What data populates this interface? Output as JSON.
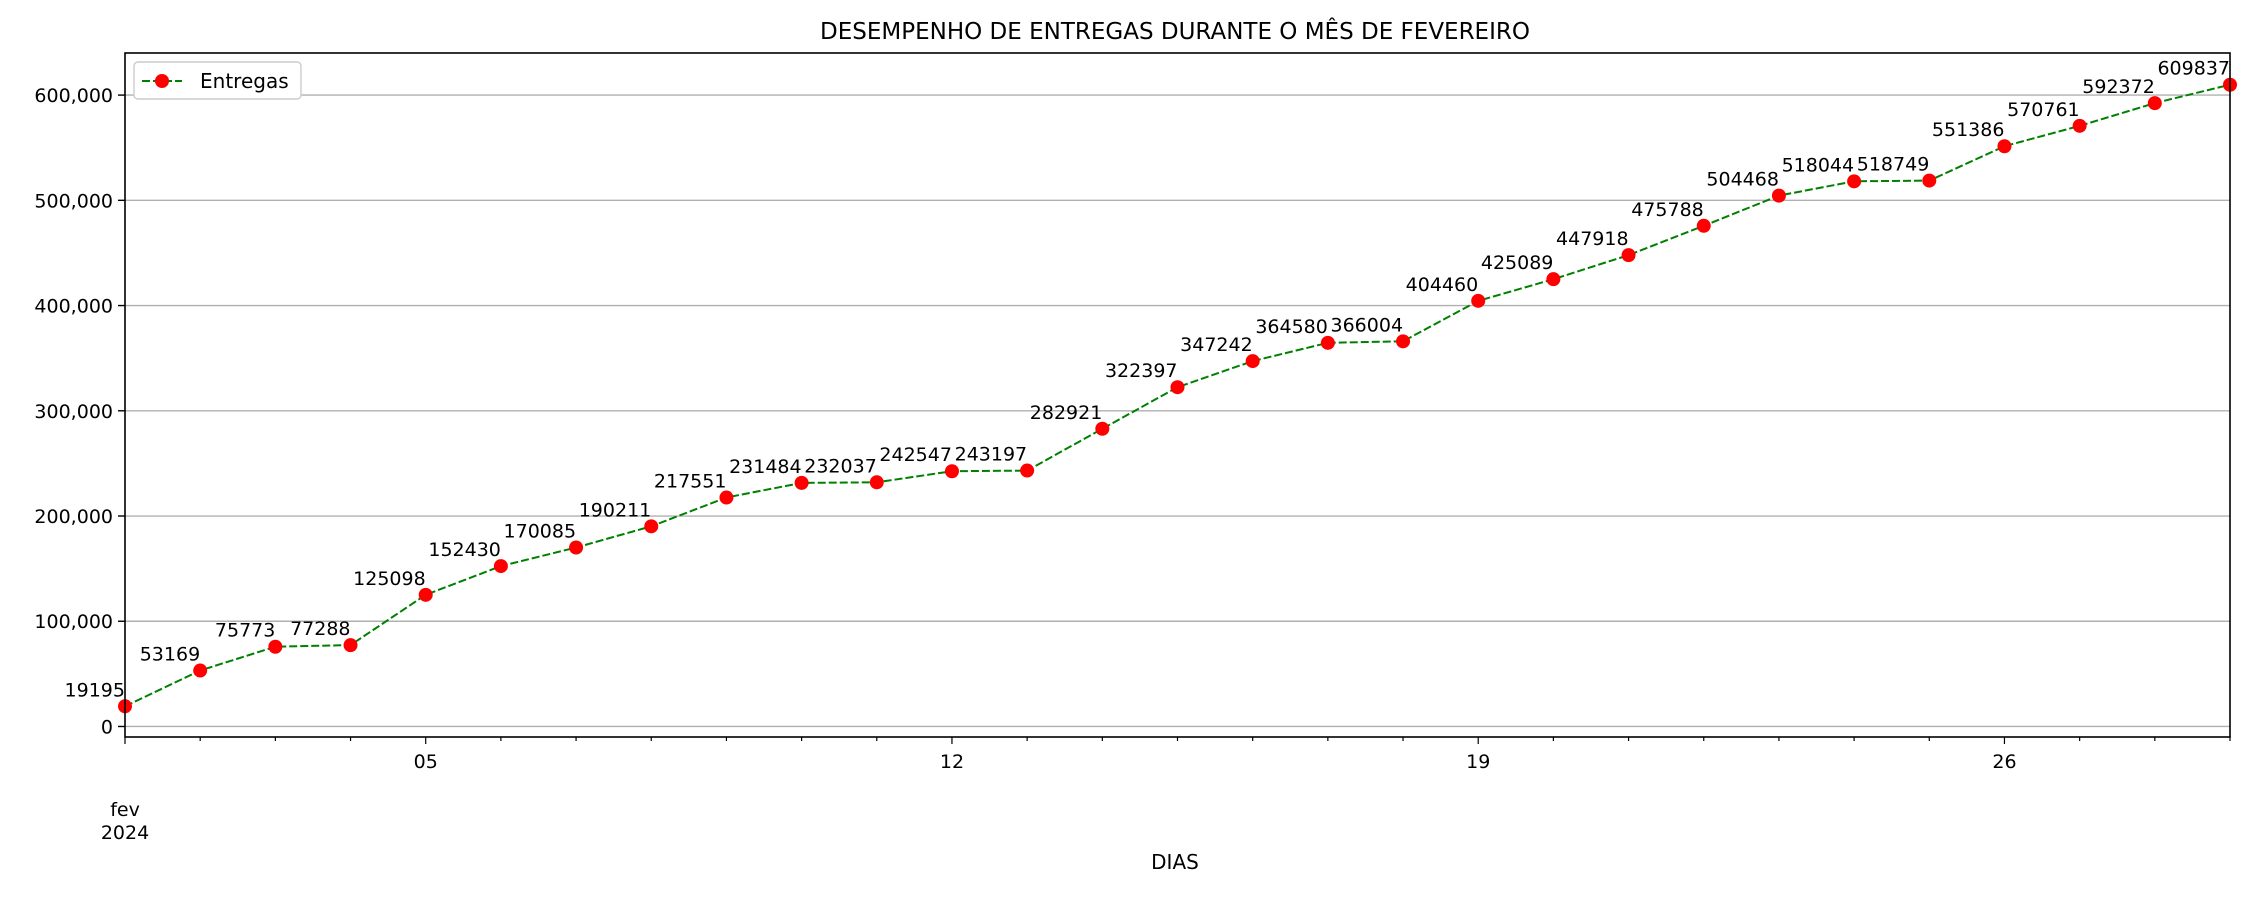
{
  "chart_data": {
    "type": "line",
    "title": "DESEMPENHO DE ENTREGAS DURANTE O MÊS DE FEVEREIRO",
    "xlabel": "DIAS",
    "ylabel": "",
    "x": [
      "2024-02-01",
      "2024-02-02",
      "2024-02-03",
      "2024-02-04",
      "2024-02-05",
      "2024-02-06",
      "2024-02-07",
      "2024-02-08",
      "2024-02-09",
      "2024-02-10",
      "2024-02-11",
      "2024-02-12",
      "2024-02-13",
      "2024-02-14",
      "2024-02-15",
      "2024-02-16",
      "2024-02-17",
      "2024-02-18",
      "2024-02-19",
      "2024-02-20",
      "2024-02-21",
      "2024-02-22",
      "2024-02-23",
      "2024-02-24",
      "2024-02-25",
      "2024-02-26",
      "2024-02-27",
      "2024-02-28",
      "2024-02-29"
    ],
    "series": [
      {
        "name": "Entregas",
        "values": [
          19195,
          53169,
          75773,
          77288,
          125098,
          152430,
          170085,
          190211,
          217551,
          231484,
          232037,
          242547,
          243197,
          282921,
          322397,
          347242,
          364580,
          366004,
          404460,
          425089,
          447918,
          475788,
          504468,
          518044,
          518749,
          551386,
          570761,
          592372,
          609837
        ],
        "line_color": "#008000",
        "line_style": "dashed",
        "marker": "circle",
        "marker_color": "#ff0000"
      }
    ],
    "ylim": [
      -10000,
      640000
    ],
    "xlim": [
      "2024-02-01",
      "2024-02-29"
    ],
    "y_ticks": [
      0,
      100000,
      200000,
      300000,
      400000,
      500000,
      600000
    ],
    "y_tick_labels": [
      "0",
      "100,000",
      "200,000",
      "300,000",
      "400,000",
      "500,000",
      "600,000"
    ],
    "x_major_ticks": [
      "2024-02-05",
      "2024-02-12",
      "2024-02-19",
      "2024-02-26"
    ],
    "x_major_tick_labels": [
      "05",
      "12",
      "19",
      "26"
    ],
    "x_start_label": [
      "fev",
      "2024"
    ],
    "grid": "horizontal",
    "legend": "top-left",
    "data_labels": true
  }
}
